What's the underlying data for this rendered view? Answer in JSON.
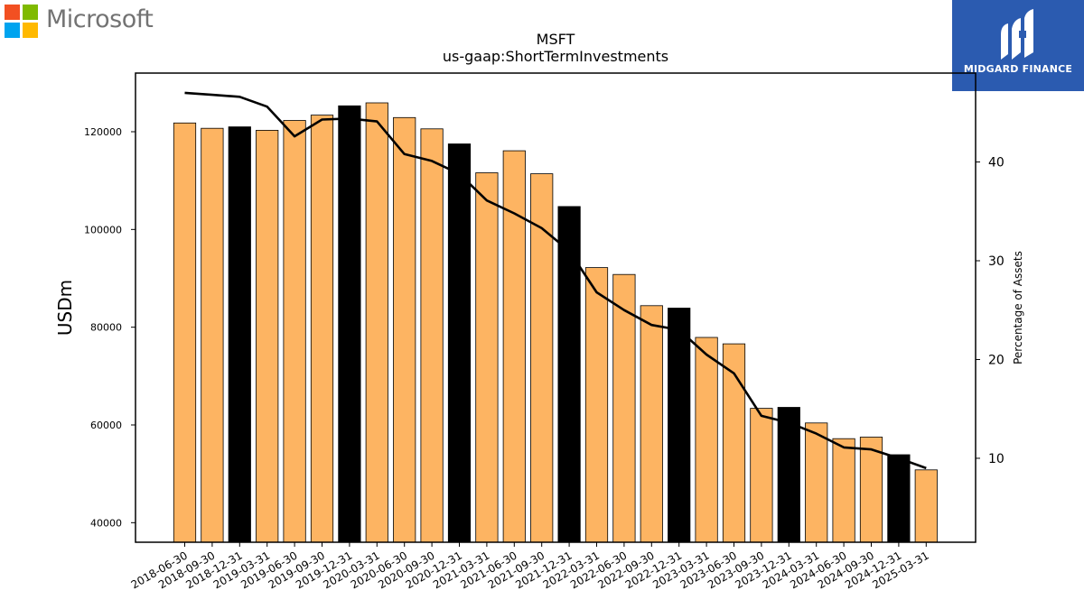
{
  "header": {
    "logo_text": "Microsoft",
    "logo_colors": [
      "#f25022",
      "#7fba00",
      "#00a4ef",
      "#ffb900"
    ],
    "badge_text": "MIDGARD FINANCE",
    "badge_color": "#2b5bb0"
  },
  "chart_data": {
    "type": "bar",
    "title": "MSFT",
    "subtitle": "us-gaap:ShortTermInvestments",
    "ylabel": "USDm",
    "y2label": "Percentage of Assets",
    "ylim": [
      36000,
      132000
    ],
    "y2lim": [
      1.5,
      49
    ],
    "yticks": [
      40000,
      60000,
      80000,
      100000,
      120000
    ],
    "y2ticks": [
      10,
      20,
      30,
      40
    ],
    "grid": false,
    "colors": {
      "quarter": "#fdb462",
      "year_end": "#000000",
      "line": "#000000"
    },
    "categories": [
      "2018-06-30",
      "2018-09-30",
      "2018-12-31",
      "2019-03-31",
      "2019-06-30",
      "2019-09-30",
      "2019-12-31",
      "2020-03-31",
      "2020-06-30",
      "2020-09-30",
      "2020-12-31",
      "2021-03-31",
      "2021-06-30",
      "2021-09-30",
      "2021-12-31",
      "2022-03-31",
      "2022-06-30",
      "2022-09-30",
      "2022-12-31",
      "2023-03-31",
      "2023-06-30",
      "2023-09-30",
      "2023-12-31",
      "2024-03-31",
      "2024-06-30",
      "2024-09-30",
      "2024-12-31",
      "2025-03-31"
    ],
    "series": [
      {
        "type": "bar",
        "values": [
          121800,
          120700,
          121000,
          120300,
          122300,
          123400,
          125300,
          125900,
          122900,
          120600,
          117500,
          111600,
          116100,
          111400,
          104700,
          92200,
          90800,
          84400,
          83900,
          77900,
          76600,
          63400,
          63600,
          60400,
          57200,
          57500,
          53900,
          50800
        ],
        "highlight": [
          false,
          false,
          true,
          false,
          false,
          false,
          true,
          false,
          false,
          false,
          true,
          false,
          false,
          false,
          true,
          false,
          false,
          false,
          true,
          false,
          false,
          false,
          true,
          false,
          false,
          false,
          true,
          false
        ]
      },
      {
        "type": "line",
        "axis": "right",
        "values": [
          47.0,
          46.8,
          46.6,
          45.6,
          42.6,
          44.3,
          44.4,
          44.1,
          40.8,
          40.1,
          38.8,
          36.1,
          34.8,
          33.3,
          31.0,
          26.8,
          25.0,
          23.5,
          23.0,
          20.5,
          18.6,
          14.3,
          13.6,
          12.5,
          11.1,
          10.9,
          10.0,
          9.0
        ]
      }
    ]
  }
}
